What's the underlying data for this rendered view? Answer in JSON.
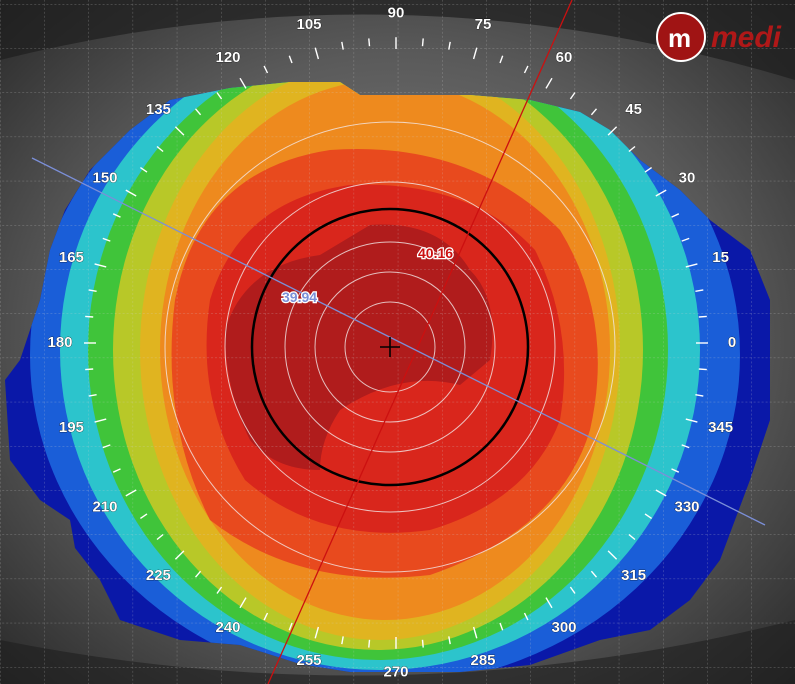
{
  "brand": {
    "mark": "m",
    "text": "medi"
  },
  "angles": [
    "0",
    "15",
    "30",
    "45",
    "60",
    "75",
    "90",
    "105",
    "120",
    "135",
    "150",
    "165",
    "180",
    "195",
    "210",
    "225",
    "240",
    "255",
    "270",
    "285",
    "300",
    "315",
    "330",
    "345"
  ],
  "steep_k": {
    "value": "40.16",
    "axis_deg": 62,
    "color": "#cc1010"
  },
  "flat_k": {
    "value": "39.94",
    "axis_deg": 152,
    "color": "#7b8fd8"
  },
  "colors": {
    "darkred": "#b01c1c",
    "red": "#d9261c",
    "redorange": "#e84a1e",
    "orange": "#ee8a1e",
    "yelloworange": "#e0b420",
    "yellowgreen": "#b8c828",
    "green": "#40c43a",
    "cyan": "#2cc4cc",
    "blue": "#1a5ed8",
    "darkblue": "#0a18a8"
  }
}
